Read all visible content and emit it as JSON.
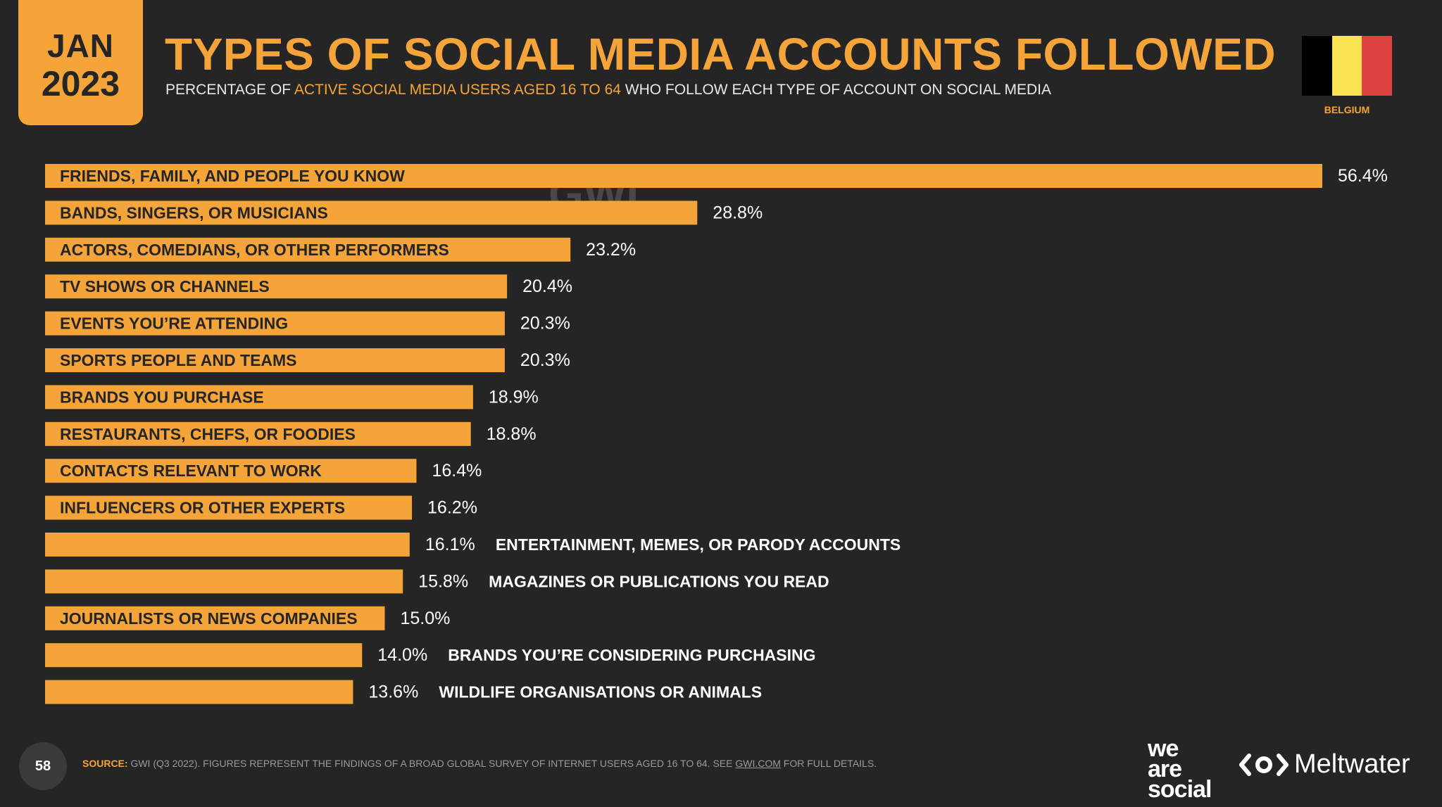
{
  "header": {
    "month": "JAN",
    "year": "2023",
    "title": "TYPES OF SOCIAL MEDIA ACCOUNTS FOLLOWED",
    "subtitle_pre": "PERCENTAGE OF ",
    "subtitle_highlight": "ACTIVE SOCIAL MEDIA USERS AGED 16 TO 64",
    "subtitle_post": " WHO FOLLOW EACH TYPE OF ACCOUNT ON SOCIAL MEDIA",
    "country": "BELGIUM",
    "flag_colors": [
      "#000000",
      "#f9e350",
      "#e04141"
    ]
  },
  "watermark": "GWI.",
  "colors": {
    "accent": "#f5a43a",
    "background": "#252525",
    "label_dark": "#252525",
    "value_text": "#ffffff"
  },
  "chart_data": {
    "type": "bar",
    "orientation": "horizontal",
    "categories": [
      "FRIENDS, FAMILY, AND PEOPLE YOU KNOW",
      "BANDS, SINGERS, OR MUSICIANS",
      "ACTORS, COMEDIANS, OR OTHER PERFORMERS",
      "TV SHOWS OR CHANNELS",
      "EVENTS YOU’RE ATTENDING",
      "SPORTS PEOPLE AND TEAMS",
      "BRANDS YOU PURCHASE",
      "RESTAURANTS, CHEFS, OR FOODIES",
      "CONTACTS RELEVANT TO WORK",
      "INFLUENCERS OR OTHER EXPERTS",
      "ENTERTAINMENT, MEMES, OR PARODY ACCOUNTS",
      "MAGAZINES OR PUBLICATIONS YOU READ",
      "JOURNALISTS OR NEWS COMPANIES",
      "BRANDS YOU’RE CONSIDERING PURCHASING",
      "WILDLIFE ORGANISATIONS OR ANIMALS"
    ],
    "values": [
      56.4,
      28.8,
      23.2,
      20.4,
      20.3,
      20.3,
      18.9,
      18.8,
      16.4,
      16.2,
      16.1,
      15.8,
      15.0,
      14.0,
      13.6
    ],
    "value_labels": [
      "56.4%",
      "28.8%",
      "23.2%",
      "20.4%",
      "20.3%",
      "20.3%",
      "18.9%",
      "18.8%",
      "16.4%",
      "16.2%",
      "16.1%",
      "15.8%",
      "15.0%",
      "14.0%",
      "13.6%"
    ],
    "label_placement": [
      "inside",
      "inside",
      "inside",
      "inside",
      "inside",
      "inside",
      "inside",
      "inside",
      "inside",
      "inside",
      "outside",
      "outside",
      "inside",
      "outside",
      "outside"
    ],
    "xlim": [
      0,
      56.4
    ],
    "grid": false,
    "legend": "none",
    "bar_color": "#f5a43a"
  },
  "footer": {
    "page_number": "58",
    "source_label": "SOURCE:",
    "source_text": " GWI (Q3 2022). FIGURES REPRESENT THE FINDINGS OF A BROAD GLOBAL SURVEY OF INTERNET USERS AGED 16 TO 64. SEE ",
    "source_link": "GWI.COM",
    "source_tail": " FOR FULL DETAILS.",
    "brand_1_line1": "we",
    "brand_1_line2": "are",
    "brand_1_line3": "social",
    "brand_2": "Meltwater",
    "brand_2_icon": "meltwater-logo-icon"
  }
}
